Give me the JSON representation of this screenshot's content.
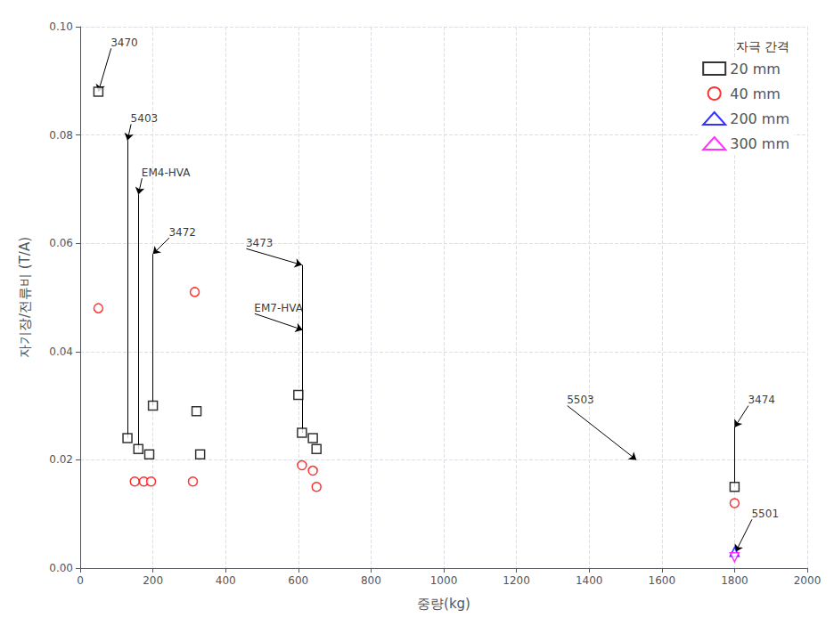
{
  "chart_data": {
    "type": "scatter",
    "xlabel": "중량(kg)",
    "ylabel": "자기장/전류비 (T/A)",
    "xlim": [
      0,
      2000
    ],
    "ylim": [
      0.0,
      0.1
    ],
    "xticks": [
      0,
      200,
      400,
      600,
      800,
      1000,
      1200,
      1400,
      1600,
      1800,
      2000
    ],
    "yticks": [
      {
        "value": 0.0,
        "label": "0.00"
      },
      0.02,
      0.04,
      0.06,
      0.08,
      {
        "value": 0.1,
        "label": "0.10"
      }
    ],
    "grid": true,
    "legend": "upper right",
    "legend_title": "자극 간격",
    "series": [
      {
        "name": "20 mm",
        "color": "black",
        "marker": "square",
        "x": [
          50,
          130,
          160,
          190,
          200,
          320,
          330,
          600,
          610,
          640,
          650,
          1800
        ],
        "values": [
          0.088,
          0.024,
          0.022,
          0.021,
          0.03,
          0.029,
          0.021,
          0.032,
          0.025,
          0.024,
          0.022,
          0.015
        ]
      },
      {
        "name": "40 mm",
        "color": "red",
        "marker": "circle",
        "x": [
          50,
          150,
          175,
          195,
          315,
          310,
          610,
          640,
          650,
          1800
        ],
        "values": [
          0.048,
          0.016,
          0.016,
          0.016,
          0.051,
          0.016,
          0.019,
          0.018,
          0.015,
          0.012
        ]
      },
      {
        "name": "200 mm",
        "color": "blue",
        "marker": "triangle-up",
        "x": [
          1800
        ],
        "values": [
          0.003
        ]
      },
      {
        "name": "300 mm",
        "color": "magenta",
        "marker": "triangle-down",
        "x": [
          1800
        ],
        "values": [
          0.002
        ]
      }
    ],
    "annotations": [
      {
        "text": "3470",
        "xy": [
          50,
          0.088
        ],
        "xytext": [
          85,
          0.096
        ]
      },
      {
        "text": "5403",
        "xy": [
          130,
          0.079
        ],
        "xytext": [
          140,
          0.082
        ],
        "stem_from": [
          130,
          0.024
        ]
      },
      {
        "text": "EM4-HVA",
        "xy": [
          160,
          0.069
        ],
        "xytext": [
          170,
          0.072
        ],
        "stem_from": [
          160,
          0.022
        ]
      },
      {
        "text": "3472",
        "xy": [
          200,
          0.058
        ],
        "xytext": [
          245,
          0.061
        ],
        "stem_from": [
          200,
          0.03
        ]
      },
      {
        "text": "3473",
        "xy": [
          610,
          0.056
        ],
        "xytext": [
          457,
          0.059
        ],
        "stem_from": [
          610,
          0.025
        ]
      },
      {
        "text": "EM7-HVA",
        "xy": [
          612,
          0.044
        ],
        "xytext": [
          480,
          0.047
        ]
      },
      {
        "text": "5503",
        "xy": [
          1530,
          0.02
        ],
        "xytext": [
          1340,
          0.03
        ]
      },
      {
        "text": "3474",
        "xy": [
          1800,
          0.026
        ],
        "xytext": [
          1838,
          0.03
        ],
        "stem_from": [
          1800,
          0.015
        ]
      },
      {
        "text": "5501",
        "xy": [
          1803,
          0.003
        ],
        "xytext": [
          1848,
          0.009
        ]
      }
    ]
  }
}
